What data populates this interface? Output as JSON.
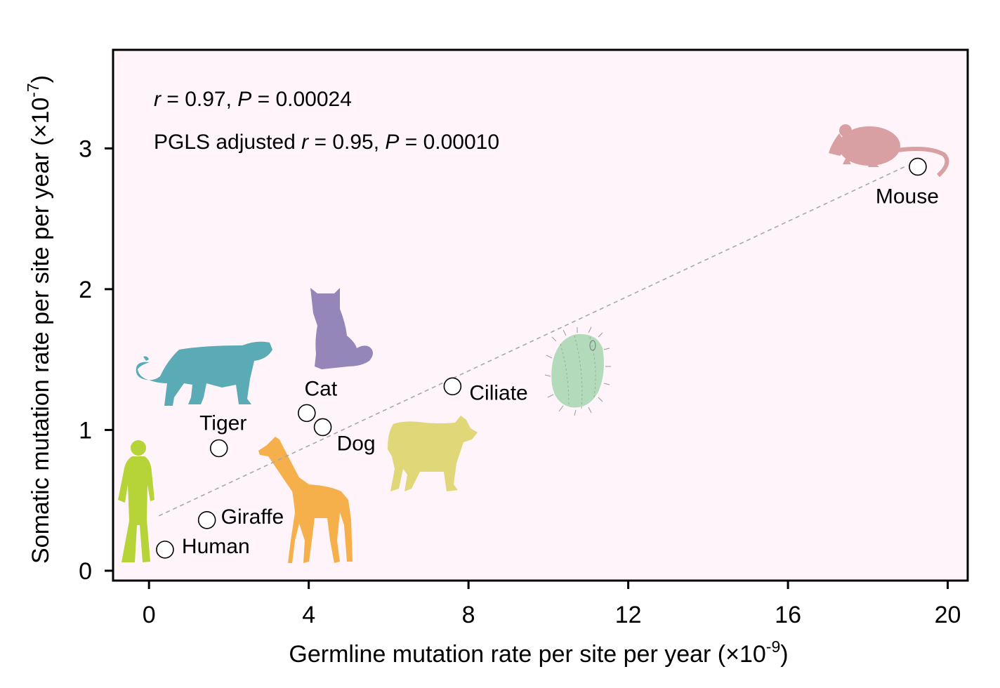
{
  "chart_data": {
    "type": "scatter",
    "xlabel": "Germline mutation rate per site per year (×10",
    "xlabel_exp": "-9",
    "xlabel_end": ")",
    "ylabel": "Somatic mutation rate per site per year (×10",
    "ylabel_exp": "-7",
    "ylabel_end": ")",
    "xlim": [
      -0.9,
      20.5
    ],
    "ylim": [
      -0.07,
      3.7
    ],
    "xticks": [
      0,
      4,
      8,
      12,
      16,
      20
    ],
    "yticks": [
      0,
      1,
      2,
      3
    ],
    "grid": false,
    "background": "#fef4fa",
    "annotations": {
      "line1_r": "r",
      "line1_rest": " = 0.97,  ",
      "line1_p": "P",
      "line1_pval": "  = 0.00024",
      "line2_prefix": "PGLS adjusted ",
      "line2_r": "r",
      "line2_rest": " = 0.95,  ",
      "line2_p": "P",
      "line2_pval": "  = 0.00010"
    },
    "points": [
      {
        "label": "Human",
        "x": 0.4,
        "y": 0.15
      },
      {
        "label": "Giraffe",
        "x": 1.45,
        "y": 0.36
      },
      {
        "label": "Tiger",
        "x": 1.75,
        "y": 0.87
      },
      {
        "label": "Cat",
        "x": 3.95,
        "y": 1.12
      },
      {
        "label": "Dog",
        "x": 4.35,
        "y": 1.02
      },
      {
        "label": "Ciliate",
        "x": 7.6,
        "y": 1.31
      },
      {
        "label": "Mouse",
        "x": 19.25,
        "y": 2.87
      }
    ],
    "regression_line": {
      "x": [
        0.25,
        19.0
      ],
      "y": [
        0.39,
        2.88
      ],
      "color": "#a8a8a8",
      "style": "dashed"
    },
    "silhouette_colors": {
      "human-icon": "#b6d337",
      "giraffe-icon": "#f5b04c",
      "tiger-icon": "#5aabb6",
      "cat-icon": "#9486b9",
      "dog-icon": "#e0d779",
      "ciliate-icon": "#b3dbbb",
      "mouse-icon": "#d8a0a2"
    }
  }
}
